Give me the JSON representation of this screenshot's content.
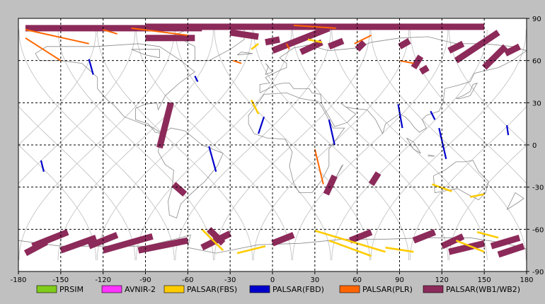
{
  "map": {
    "lon_ticks": [
      "-180",
      "-150",
      "-120",
      "-90",
      "-60",
      "-30",
      "0",
      "30",
      "60",
      "90",
      "120",
      "150",
      "180"
    ],
    "lat_ticks": [
      "90",
      "60",
      "30",
      "0",
      "-30",
      "-60",
      "-90"
    ],
    "colors": {
      "background": "#c0c0c0",
      "plot": "#ffffff",
      "grid": "#000000",
      "orbit": "#bdbdbd",
      "coast": "#8a8a8a"
    }
  },
  "legend": [
    {
      "label": "PRSIM",
      "color": "#80cc1a"
    },
    {
      "label": "AVNIR-2",
      "color": "#ff33ff"
    },
    {
      "label": "PALSAR(FBS)",
      "color": "#ffcc00"
    },
    {
      "label": "PALSAR(FBD)",
      "color": "#0000cc"
    },
    {
      "label": "PALSAR(PLR)",
      "color": "#ff6600"
    },
    {
      "label": "PALSAR(WB1/WB2)",
      "color": "#8c2a5a"
    }
  ],
  "chart_data": {
    "type": "scatter",
    "xlim": [
      -180,
      180
    ],
    "ylim": [
      -90,
      90
    ],
    "grid": true,
    "legend_position": "bottom",
    "series": [
      {
        "name": "PALSAR(WB1/WB2)",
        "segments": [
          [
            [
              -175,
              83
            ],
            [
              -50,
              83
            ]
          ],
          [
            [
              -90,
              84
            ],
            [
              150,
              84
            ]
          ],
          [
            [
              -90,
              76
            ],
            [
              -55,
              76
            ]
          ],
          [
            [
              0,
              67
            ],
            [
              40,
              83
            ]
          ],
          [
            [
              40,
              70
            ],
            [
              50,
              74
            ]
          ],
          [
            [
              60,
              68
            ],
            [
              65,
              73
            ]
          ],
          [
            [
              90,
              70
            ],
            [
              97,
              74
            ]
          ],
          [
            [
              100,
              55
            ],
            [
              105,
              63
            ]
          ],
          [
            [
              130,
              60
            ],
            [
              160,
              80
            ]
          ],
          [
            [
              165,
              65
            ],
            [
              175,
              70
            ]
          ],
          [
            [
              150,
              55
            ],
            [
              165,
              70
            ]
          ],
          [
            [
              -80,
              -2
            ],
            [
              -72,
              30
            ]
          ],
          [
            [
              -45,
              -60
            ],
            [
              -35,
              -70
            ]
          ],
          [
            [
              -70,
              -28
            ],
            [
              -62,
              -35
            ]
          ],
          [
            [
              38,
              -35
            ],
            [
              44,
              -22
            ]
          ],
          [
            [
              -170,
              -72
            ],
            [
              -145,
              -62
            ]
          ],
          [
            [
              -130,
              -72
            ],
            [
              -110,
              -64
            ]
          ],
          [
            [
              -95,
              -75
            ],
            [
              -60,
              -68
            ]
          ],
          [
            [
              -50,
              -73
            ],
            [
              -30,
              -63
            ]
          ],
          [
            [
              -120,
              -75
            ],
            [
              -85,
              -65
            ]
          ],
          [
            [
              0,
              -70
            ],
            [
              15,
              -64
            ]
          ],
          [
            [
              55,
              -68
            ],
            [
              70,
              -62
            ]
          ],
          [
            [
              100,
              -68
            ],
            [
              115,
              -62
            ]
          ],
          [
            [
              125,
              -76
            ],
            [
              150,
              -70
            ]
          ],
          [
            [
              155,
              -72
            ],
            [
              175,
              -66
            ]
          ],
          [
            [
              -175,
              -77
            ],
            [
              -160,
              -69
            ]
          ],
          [
            [
              -150,
              -75
            ],
            [
              -125,
              -66
            ]
          ],
          [
            [
              120,
              -72
            ],
            [
              135,
              -65
            ]
          ],
          [
            [
              160,
              -78
            ],
            [
              178,
              -72
            ]
          ],
          [
            [
              -30,
              80
            ],
            [
              -10,
              77
            ]
          ],
          [
            [
              20,
              66
            ],
            [
              35,
              73
            ]
          ],
          [
            [
              -5,
              73
            ],
            [
              5,
              75
            ]
          ],
          [
            [
              125,
              67
            ],
            [
              135,
              72
            ]
          ],
          [
            [
              105,
              52
            ],
            [
              110,
              55
            ]
          ],
          [
            [
              70,
              -28
            ],
            [
              75,
              -20
            ]
          ]
        ]
      },
      {
        "name": "PALSAR(FBD)",
        "segments": [
          [
            [
              -130,
              61
            ],
            [
              -127,
              50
            ]
          ],
          [
            [
              -55,
              49
            ],
            [
              -53,
              45
            ]
          ],
          [
            [
              -45,
              -1
            ],
            [
              -40,
              -19
            ]
          ],
          [
            [
              -10,
              8
            ],
            [
              -6,
              20
            ]
          ],
          [
            [
              40,
              18
            ],
            [
              44,
              0
            ]
          ],
          [
            [
              89,
              29
            ],
            [
              92,
              12
            ]
          ],
          [
            [
              112,
              24
            ],
            [
              115,
              18
            ]
          ],
          [
            [
              118,
              12
            ],
            [
              123,
              -10
            ]
          ],
          [
            [
              166,
              14
            ],
            [
              167,
              7
            ]
          ],
          [
            [
              -164,
              -11
            ],
            [
              -162,
              -19
            ]
          ]
        ]
      },
      {
        "name": "PALSAR(FBS)",
        "segments": [
          [
            [
              -15,
              32
            ],
            [
              -10,
              22
            ]
          ],
          [
            [
              -50,
              -60
            ],
            [
              -35,
              -75
            ]
          ],
          [
            [
              -25,
              -77
            ],
            [
              -5,
              -72
            ]
          ],
          [
            [
              30,
              -61
            ],
            [
              80,
              -76
            ]
          ],
          [
            [
              40,
              -68
            ],
            [
              70,
              -79
            ]
          ],
          [
            [
              80,
              -73
            ],
            [
              100,
              -76
            ]
          ],
          [
            [
              130,
              -68
            ],
            [
              150,
              -76
            ]
          ],
          [
            [
              145,
              -62
            ],
            [
              160,
              -66
            ]
          ],
          [
            [
              -15,
              68
            ],
            [
              -10,
              72
            ]
          ],
          [
            [
              25,
              75
            ],
            [
              35,
              73
            ]
          ],
          [
            [
              113,
              -28
            ],
            [
              127,
              -33
            ]
          ],
          [
            [
              140,
              -37
            ],
            [
              150,
              -35
            ]
          ]
        ]
      },
      {
        "name": "PALSAR(PLR)",
        "segments": [
          [
            [
              -175,
              82
            ],
            [
              -130,
              72
            ]
          ],
          [
            [
              -175,
              76
            ],
            [
              -150,
              60
            ]
          ],
          [
            [
              -100,
              83
            ],
            [
              -60,
              78
            ]
          ],
          [
            [
              -28,
              60
            ],
            [
              -22,
              58
            ]
          ],
          [
            [
              10,
              72
            ],
            [
              12,
              68
            ]
          ],
          [
            [
              30,
              -3
            ],
            [
              36,
              -28
            ]
          ],
          [
            [
              58,
              72
            ],
            [
              70,
              78
            ]
          ],
          [
            [
              -120,
              82
            ],
            [
              -110,
              79
            ]
          ],
          [
            [
              15,
              85
            ],
            [
              45,
              83
            ]
          ],
          [
            [
              90,
              60
            ],
            [
              100,
              58
            ]
          ]
        ]
      }
    ]
  }
}
